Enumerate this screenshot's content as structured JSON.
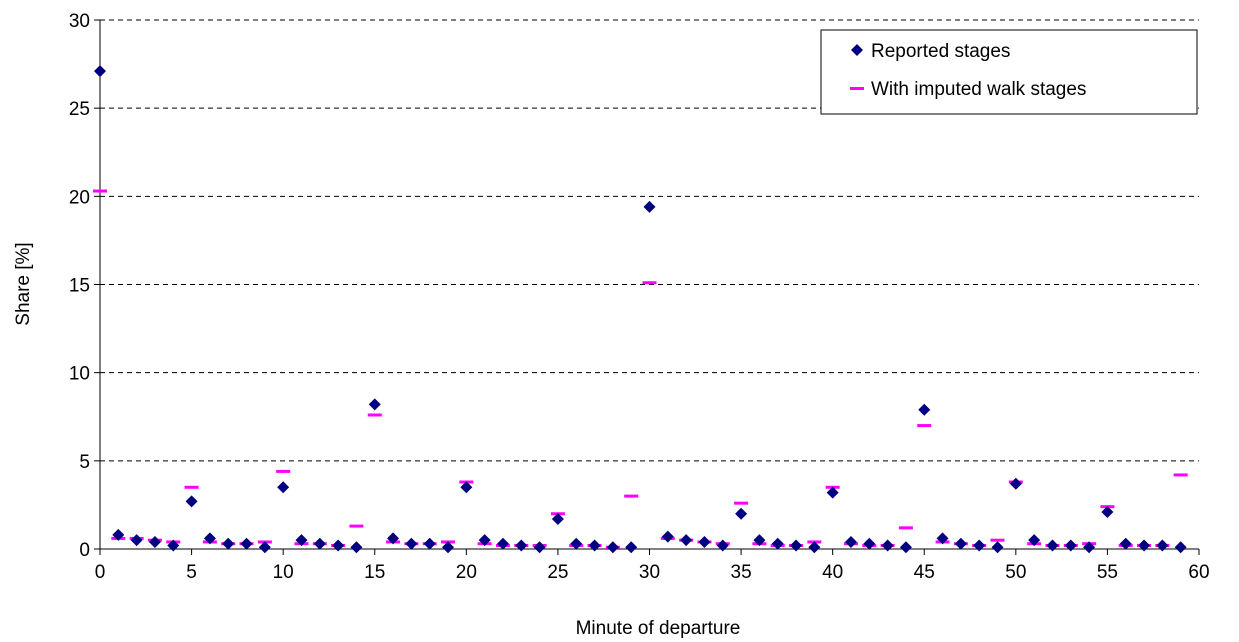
{
  "chart_data": {
    "type": "scatter",
    "xlabel": "Minute of departure",
    "ylabel": "Share [%]",
    "xlim": [
      0,
      60
    ],
    "ylim": [
      0,
      30
    ],
    "x_ticks": [
      "0",
      "5",
      "10",
      "15",
      "20",
      "25",
      "30",
      "35",
      "40",
      "45",
      "50",
      "55",
      "60"
    ],
    "y_ticks": [
      "0",
      "5",
      "10",
      "15",
      "20",
      "25",
      "30"
    ],
    "grid": "horizontal dashed",
    "legend_position": "top-right",
    "series": [
      {
        "name": "Reported stages",
        "marker": "diamond",
        "color": "#000080",
        "x": [
          0,
          1,
          2,
          3,
          4,
          5,
          6,
          7,
          8,
          9,
          10,
          11,
          12,
          13,
          14,
          15,
          16,
          17,
          18,
          19,
          20,
          21,
          22,
          23,
          24,
          25,
          26,
          27,
          28,
          29,
          30,
          31,
          32,
          33,
          34,
          35,
          36,
          37,
          38,
          39,
          40,
          41,
          42,
          43,
          44,
          45,
          46,
          47,
          48,
          49,
          50,
          51,
          52,
          53,
          54,
          55,
          56,
          57,
          58,
          59
        ],
        "y": [
          27.1,
          0.8,
          0.5,
          0.4,
          0.2,
          2.7,
          0.6,
          0.3,
          0.3,
          0.1,
          3.5,
          0.5,
          0.3,
          0.2,
          0.1,
          8.2,
          0.6,
          0.3,
          0.3,
          0.1,
          3.5,
          0.5,
          0.3,
          0.2,
          0.1,
          1.7,
          0.3,
          0.2,
          0.1,
          0.1,
          19.4,
          0.7,
          0.5,
          0.4,
          0.2,
          2.0,
          0.5,
          0.3,
          0.2,
          0.1,
          3.2,
          0.4,
          0.3,
          0.2,
          0.1,
          7.9,
          0.6,
          0.3,
          0.2,
          0.1,
          3.7,
          0.5,
          0.2,
          0.2,
          0.1,
          2.1,
          0.3,
          0.2,
          0.2,
          0.1
        ]
      },
      {
        "name": "With imputed walk stages",
        "marker": "dash",
        "color": "#ff00ff",
        "x": [
          0,
          1,
          2,
          3,
          4,
          5,
          6,
          7,
          8,
          9,
          10,
          11,
          12,
          13,
          14,
          15,
          16,
          17,
          18,
          19,
          20,
          21,
          22,
          23,
          24,
          25,
          26,
          27,
          28,
          29,
          30,
          31,
          32,
          33,
          34,
          35,
          36,
          37,
          38,
          39,
          40,
          41,
          42,
          43,
          44,
          45,
          46,
          47,
          48,
          49,
          50,
          51,
          52,
          53,
          54,
          55,
          56,
          57,
          58,
          59
        ],
        "y": [
          20.3,
          0.6,
          0.6,
          0.5,
          0.4,
          3.5,
          0.4,
          0.3,
          0.3,
          0.4,
          4.4,
          0.3,
          0.3,
          0.2,
          1.3,
          7.6,
          0.4,
          0.3,
          0.3,
          0.4,
          3.8,
          0.3,
          0.2,
          0.2,
          0.2,
          2.0,
          0.2,
          0.2,
          0.1,
          3.0,
          15.1,
          0.6,
          0.5,
          0.4,
          0.3,
          2.6,
          0.3,
          0.2,
          0.2,
          0.4,
          3.5,
          0.3,
          0.2,
          0.2,
          1.2,
          7.0,
          0.4,
          0.3,
          0.2,
          0.5,
          3.8,
          0.3,
          0.2,
          0.2,
          0.3,
          2.4,
          0.2,
          0.2,
          0.2,
          4.2
        ]
      }
    ]
  }
}
